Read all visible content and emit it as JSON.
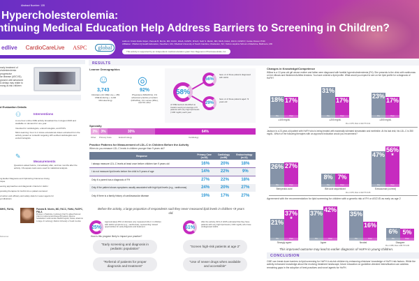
{
  "header": {
    "abstract": "Abstract Number: 135",
    "title_line1": "Hypercholesterolemia:",
    "title_line2": "ntinuing Medical Education Help Address Barriers to Screening in Children?",
    "logos": [
      "edlive",
      "CardioCareLive",
      "ASPC",
      "global"
    ],
    "authors": "Authors: Kristin Della Volpe¹; Pamela B. Morris, MD, FACC, FAHA, FASPC, FNLA²; Seth S. Martin, MD, MHS, FAHA, FACC, FASPC³; Carole Drexel, PhD¹",
    "affiliation": "Affiliation: ¹PlatformQ Health Education, Needham, MA; ²Medical University of South Carolina, Charleston, SC; ³Johns Hopkins School of Medicine, Baltimore, MD",
    "support": "This activity is supported by an independent medical education grant from Regeneron Pharmaceuticals, Inc."
  },
  "left": {
    "intro": [
      "early treatment of",
      "cholesterolemia",
      "progressive",
      "lar disease (ASCVD),",
      "gnosed until advanced",
      "ic delays may relate to",
      "mong at-risk children"
    ],
    "eval_title": "d Evaluation Details",
    "interventions_title": "Interventions",
    "interventions": [
      "A one-hour online CME activity broadcast live in August 2023 and available on demand for one year.",
      "Intended for cardiologists, endocrinologists, and PCPs.",
      "Micro-learning: Four 2-4 minute educational videos extracted from the activity posted on LinkedIn targeting HPI-verified cardiologists and endocrinologists."
    ],
    "measurements_title": "Measurements",
    "measurements": "Questions asked before, immediately after, and two months after the activity. Chi-square tests were used for statistical analysis.",
    "objectives": [
      "ng Earlier Diagnosis and Optimizing Outcomes Using",
      "nique",
      "eening approaches and diagnostic criteria for HoFH",
      "porating therapies for HoFH into a patient-centered",
      "of action and efficacy and safety data for newer agents for",
      "g indications"
    ],
    "faculty1": "MHS, FAHA,",
    "faculty2_name": "Pamela B. Morris, MD, FACC, FAHA, FASPC, FNLA",
    "faculty2_bio": "Professor of Medicine, Cardiology; Paul W. Aimee Endowed Chair in Cardiovascular Disease Prevention; Director, Seinsheimer Cardiovascular Health Program; Trustee, American College of Cardiology; Medical University of South Carolina",
    "refs": "References"
  },
  "results": {
    "section": "RESULTS",
    "demographics_title": "Learner Demographics",
    "clinicians_count": "3,743",
    "clinicians_detail": "Clinicians (44 CME Live + 459 CME Enduring + 3,240 Microlearning)",
    "physicians_pct": "92%",
    "physicians_detail": "Physicians (MDs/DOs); 1% advanced practice providers (NPs/PAs), 1% nurses (RNs), and 6% other",
    "big_pct": "58%",
    "big_detail": "of CME learners identified as treaters seeing an average of 9 patients with very high lipid levels (>400 mg/dL) each year",
    "pct56": "56%",
    "pct56_detail": "have ≥1 of these patients diagnosed with HoFH",
    "pct29": "29%",
    "pct29_detail": "have ≥1 of these patients aged <9 years old",
    "specialty_title": "Specialty",
    "specialty": [
      {
        "label": "Other",
        "pct": 3,
        "text": "3%",
        "color": "#e9a6df"
      },
      {
        "label": "Primary Care",
        "pct": 3,
        "text": "3%",
        "color": "#dc84d6"
      },
      {
        "label": "Endocrinology",
        "pct": 30,
        "text": "30%",
        "color": "#d264cc"
      },
      {
        "label": "Cardiology",
        "pct": 64,
        "text": "64%",
        "color": "#c62bbf"
      }
    ],
    "practice_title": "Practice Patterns for Measurement of LDL-C in Children Before the Activity",
    "practice_question": "When do you measure LDL-C levels in children younger than 9 years old?",
    "table_headers": [
      "Response",
      "Primary Care (n=32)",
      "Cardiology (n=98)",
      "Endocrinology (n=11)"
    ],
    "table_rows": [
      [
        "I always measure LDL-C levels at least once before children turn 9 years old",
        "16%",
        "20%",
        "18%"
      ],
      [
        "I do not measure lipid levels before the child is 9 years of age",
        "14%",
        "22%",
        "9%"
      ],
      [
        "Only if a parent has a diagnosis of FH",
        "27%",
        "22%",
        "18%"
      ],
      [
        "Only if the patient shows symptoms usually associated with high lipid levels (e.g., xanthomas)",
        "24%",
        "20%",
        "27%"
      ],
      [
        "Only if there is a family history of cardiovascular disease",
        "19%",
        "17%",
        "27%"
      ]
    ],
    "italic_note": "Before the activity, a large proportion of respondents said they never measured lipid levels in children <9 years old.",
    "pct25": "25%",
    "pct25_detail": "Approximately 25% of clinicians only measured LDL-C in children with HoFH symptoms (e.g., xanthomas), representing missed opportunities for early diagnosis and treatment.",
    "pct61": "61%",
    "pct61_detail": "After the activity, 61% of HCPs estimated that they have patients with very high lipid levels (>400 mg/dL) who have undiagnosed HoFH.",
    "impact_question": "How is this program likely to impact your practice?",
    "quotes": [
      "\"Early screening and diagnosis in pediatric population\"",
      "\"Screen high-risk patients at age 2\"",
      "\"Referral of patients for proper diagnosis and treatment\"",
      "\"Use of newer drugs when available and accessible\""
    ]
  },
  "knowledge": {
    "title": "Changes in Knowledge/Competence",
    "q1": "Willow is a 12-year-old girl whose mother and father were diagnosed with familial hypercholesterolemia (FH). She presents to the clinic with xanthomas on her elbows and thickened Achilles tendons. You have ordered a lipid profile. What would you expect to see on her lipid profile for a diagnosis of HoFH?",
    "q2": "Jackson is a 23-year-old patient with HoFH who is being treated with maximally tolerated simvastatin and ezetimibe. At his last visit, his LDL-C is 350 mg/dL. Which of the following therapies with an approved indication would you recommend?",
    "q3": "Agreement with the recommendation for lipid screening for children with a genetic risk of FH or ASCVD as early as age 2",
    "pre_label": "Pre",
    "post_label": "Post",
    "note1": "Pre n=375; Post n=132  *P<0.01",
    "note2": "Pre n=375; Post n=132  *P<0.05",
    "note3": "Pre n=355; Post n=86  *P<0.05",
    "outcome": "This improved outcome may lead to earlier diagnosis of HoFH in young children."
  },
  "chart_data": [
    {
      "type": "bar",
      "categories": [
        "≥100 mg/dL",
        "≥200 mg/dL",
        "≥300 mg/dL"
      ],
      "series": [
        {
          "name": "Pre",
          "values": [
            18,
            31,
            23
          ]
        },
        {
          "name": "Post",
          "values": [
            17,
            17,
            17
          ]
        }
      ],
      "significant": [
        false,
        false,
        false
      ]
    },
    {
      "type": "bar",
      "categories": [
        "Bempedoic acid",
        "Bile acid sequestrant",
        "Evinacumab (correct)"
      ],
      "series": [
        {
          "name": "Pre",
          "values": [
            26,
            8,
            47
          ]
        },
        {
          "name": "Post",
          "values": [
            27,
            7,
            56
          ]
        }
      ],
      "significant": [
        false,
        false,
        true
      ]
    },
    {
      "type": "bar",
      "categories": [
        "Strongly agree",
        "Agree",
        "Neutral",
        "Disagree"
      ],
      "series": [
        {
          "name": "Pre",
          "values": [
            21,
            37,
            35,
            6
          ]
        },
        {
          "name": "Post",
          "values": [
            37,
            42,
            16,
            5
          ]
        }
      ],
      "significant": [
        true,
        false,
        false,
        false
      ]
    }
  ],
  "conclusion": {
    "title": "CONCLUSION",
    "text": "CME can break down barriers to lipid screening for HoFH in at-risk children by enhancing clinicians' knowledge of HoFH risk factors. While the activity enhanced knowledge about the evolving treatment landscape, future education on guideline-directed intensification can address remaining gaps in the adoption of best practices and novel agents for HoFH."
  },
  "colors": {
    "pre": "#8593a8",
    "post": "#c62bbf",
    "accent": "#7040c0",
    "numbers": "#2a96d4"
  }
}
